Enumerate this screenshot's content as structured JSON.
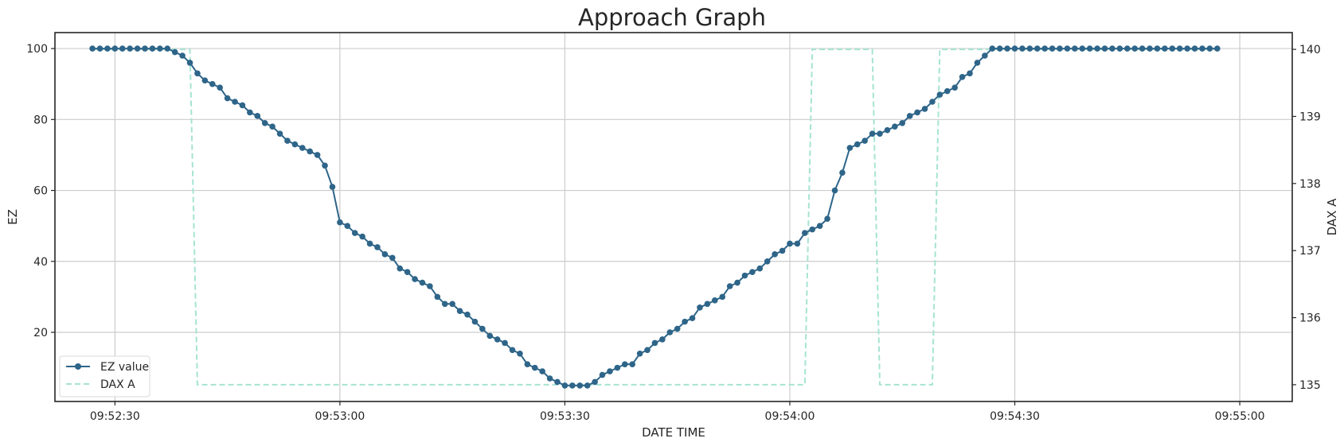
{
  "chart_data": {
    "type": "line",
    "title": "Approach Graph",
    "xlabel": "DATE TIME",
    "ylabel": "EZ",
    "y2label": "DAX A",
    "x_start": "09:52:27",
    "x_step_seconds": 1,
    "xlim": [
      "09:52:22",
      "09:55:07"
    ],
    "ylim": [
      0.5,
      104.5
    ],
    "y2lim": [
      134.75,
      140.25
    ],
    "x_ticks": [
      "09:52:30",
      "09:53:00",
      "09:53:30",
      "09:54:00",
      "09:54:30",
      "09:55:00"
    ],
    "y_ticks": [
      20,
      40,
      60,
      80,
      100
    ],
    "y2_ticks": [
      135,
      136,
      137,
      138,
      139,
      140
    ],
    "grid": true,
    "legend_position": "lower-left",
    "colors": {
      "ez": "#2e6589",
      "dax": "#a6e3d3",
      "grid": "#cccccc",
      "frame": "#262626"
    },
    "series": [
      {
        "name": "EZ value",
        "axis": "left",
        "style": "solid-line-with-markers",
        "values": [
          100,
          100,
          100,
          100,
          100,
          100,
          100,
          100,
          100,
          100,
          100,
          99,
          98,
          96,
          93,
          91,
          90,
          89,
          86,
          85,
          84,
          82,
          81,
          79,
          78,
          76,
          74,
          73,
          72,
          71,
          70,
          67,
          61,
          51,
          50,
          48,
          47,
          45,
          44,
          42,
          41,
          38,
          37,
          35,
          34,
          33,
          30,
          28,
          28,
          26,
          25,
          23,
          21,
          19,
          18,
          17,
          15,
          14,
          11,
          10,
          9,
          7,
          6,
          5,
          5,
          5,
          5,
          6,
          8,
          9,
          10,
          11,
          11,
          14,
          15,
          17,
          18,
          20,
          21,
          23,
          24,
          27,
          28,
          29,
          30,
          33,
          34,
          36,
          37,
          38,
          40,
          42,
          43,
          45,
          45,
          48,
          49,
          50,
          52,
          60,
          65,
          72,
          73,
          74,
          76,
          76,
          77,
          78,
          79,
          81,
          82,
          83,
          85,
          87,
          88,
          89,
          92,
          93,
          96,
          98,
          100,
          100,
          100,
          100,
          100,
          100,
          100,
          100,
          100,
          100,
          100,
          100,
          100,
          100,
          100,
          100,
          100,
          100,
          100,
          100,
          100,
          100,
          100,
          100,
          100,
          100,
          100,
          100,
          100,
          100,
          100
        ]
      },
      {
        "name": "DAX A",
        "axis": "right",
        "style": "dashed-line",
        "points": [
          [
            "09:52:27",
            140
          ],
          [
            "09:52:37",
            140
          ],
          [
            "09:52:40",
            140
          ],
          [
            "09:52:41",
            135
          ],
          [
            "09:54:02",
            135
          ],
          [
            "09:54:03",
            140
          ],
          [
            "09:54:11",
            140
          ],
          [
            "09:54:12",
            135
          ],
          [
            "09:54:19",
            135
          ],
          [
            "09:54:20",
            140
          ],
          [
            "09:54:57",
            140
          ]
        ]
      }
    ]
  }
}
